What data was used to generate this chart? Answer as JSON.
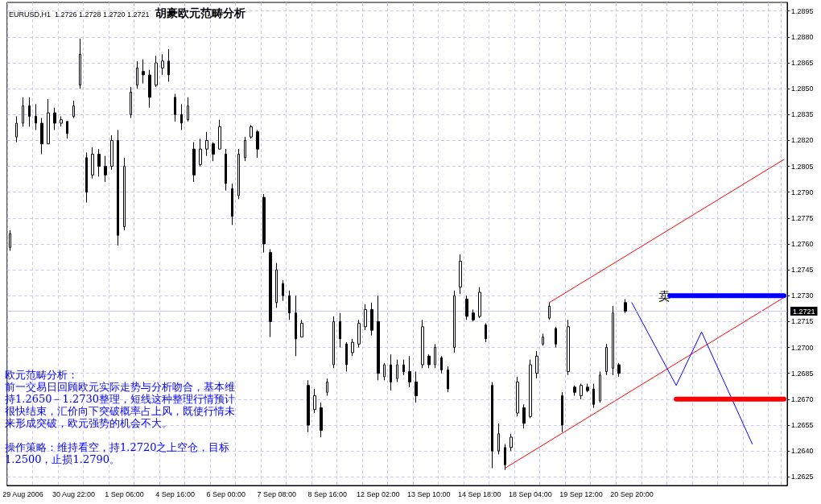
{
  "chart_data": {
    "type": "candlestick",
    "title": "胡豪欧元范畴分析",
    "subtitle": "EURUSD,H1  1.2726 1.2728 1.2720 1.2721",
    "categories": [
      null,
      null,
      "29 Aug 2006",
      null,
      null,
      null,
      null,
      null,
      null,
      null,
      "30 Aug 22:00",
      null,
      null,
      null,
      null,
      null,
      null,
      null,
      "1 Sep 06:00",
      null,
      null,
      null,
      null,
      null,
      null,
      null,
      "4 Sep 16:00",
      null,
      null,
      null,
      null,
      null,
      null,
      null,
      "6 Sep 00:00",
      null,
      null,
      null,
      null,
      null,
      null,
      null,
      "7 Sep 08:00",
      null,
      null,
      null,
      null,
      null,
      null,
      null,
      "8 Sep 16:00",
      null,
      null,
      null,
      null,
      null,
      null,
      null,
      "12 Sep 02:00",
      null,
      null,
      null,
      null,
      null,
      null,
      null,
      "13 Sep 10:00",
      null,
      null,
      null,
      null,
      null,
      null,
      null,
      "14 Sep 18:00",
      null,
      null,
      null,
      null,
      null,
      null,
      null,
      "18 Sep 04:00",
      null,
      null,
      null,
      null,
      null,
      null,
      null,
      "19 Sep 12:00",
      null,
      null,
      null,
      null,
      null,
      null,
      null,
      "20 Sep 20:00",
      null,
      null,
      null,
      null,
      null,
      null,
      null,
      null,
      null,
      null,
      null,
      null,
      null,
      null,
      null,
      null,
      null,
      null,
      null,
      null,
      null,
      null,
      null,
      null
    ],
    "color": "#000000",
    "ohlc": [
      [
        1.2758,
        1.2768,
        1.2756,
        1.2766
      ],
      [
        1.2822,
        1.2834,
        1.2819,
        1.283
      ],
      [
        1.283,
        1.2845,
        1.2828,
        1.284
      ],
      [
        1.284,
        1.2845,
        1.2828,
        1.2834
      ],
      [
        1.2834,
        1.2841,
        1.2826,
        1.283
      ],
      [
        1.283,
        1.2833,
        1.2812,
        1.2818
      ],
      [
        1.2818,
        1.2844,
        1.2818,
        1.2836
      ],
      [
        1.2836,
        1.2839,
        1.2826,
        1.283
      ],
      [
        1.283,
        1.2834,
        1.2828,
        1.2832
      ],
      [
        1.2831,
        1.2831,
        1.2821,
        1.2824
      ],
      [
        1.2834,
        1.2843,
        1.2833,
        1.284
      ],
      [
        1.2852,
        1.2879,
        1.285,
        1.287
      ],
      [
        1.281,
        1.2813,
        1.2784,
        1.279
      ],
      [
        1.28,
        1.2816,
        1.2798,
        1.2812
      ],
      [
        1.2812,
        1.2815,
        1.2799,
        1.2805
      ],
      [
        1.2805,
        1.2811,
        1.2796,
        1.28
      ],
      [
        1.2805,
        1.2823,
        1.2803,
        1.282
      ],
      [
        1.282,
        1.2826,
        1.2759,
        1.2765
      ],
      [
        1.277,
        1.281,
        1.2768,
        1.2805
      ],
      [
        1.2835,
        1.2851,
        1.2833,
        1.2848
      ],
      [
        1.2852,
        1.2866,
        1.285,
        1.2862
      ],
      [
        1.286,
        1.2867,
        1.2853,
        1.2858
      ],
      [
        1.2858,
        1.2861,
        1.2839,
        1.2845
      ],
      [
        1.2852,
        1.2869,
        1.2851,
        1.2865
      ],
      [
        1.2862,
        1.287,
        1.2858,
        1.2866
      ],
      [
        1.2866,
        1.2873,
        1.2854,
        1.2858
      ],
      [
        1.2845,
        1.2847,
        1.2831,
        1.2835
      ],
      [
        1.2835,
        1.2841,
        1.2826,
        1.283
      ],
      [
        1.2832,
        1.2845,
        1.2831,
        1.284
      ],
      [
        1.2815,
        1.2819,
        1.2796,
        1.28
      ],
      [
        1.2806,
        1.2821,
        1.2805,
        1.2815
      ],
      [
        1.2815,
        1.2825,
        1.2811,
        1.282
      ],
      [
        1.2818,
        1.2819,
        1.2808,
        1.2812
      ],
      [
        1.2815,
        1.2832,
        1.2815,
        1.2828
      ],
      [
        1.2812,
        1.2815,
        1.2791,
        1.2795
      ],
      [
        1.2792,
        1.2795,
        1.2771,
        1.2776
      ],
      [
        1.2788,
        1.2815,
        1.2786,
        1.2812
      ],
      [
        1.281,
        1.2822,
        1.2808,
        1.282
      ],
      [
        1.2822,
        1.2829,
        1.2821,
        1.2828
      ],
      [
        1.2825,
        1.2826,
        1.281,
        1.2815
      ],
      [
        1.2787,
        1.2789,
        1.2755,
        1.276
      ],
      [
        1.2755,
        1.2757,
        1.2706,
        1.2715
      ],
      [
        1.2726,
        1.2749,
        1.2723,
        1.2745
      ],
      [
        1.2737,
        1.2739,
        1.2727,
        1.273
      ],
      [
        1.273,
        1.2733,
        1.2716,
        1.272
      ],
      [
        1.272,
        1.273,
        1.2695,
        1.2705
      ],
      [
        1.2706,
        1.2716,
        1.2706,
        1.2714
      ],
      [
        1.2678,
        1.2681,
        1.2651,
        1.2655
      ],
      [
        1.2664,
        1.2676,
        1.2662,
        1.2672
      ],
      [
        1.2665,
        1.2668,
        1.2648,
        1.2652
      ],
      [
        1.2674,
        1.2682,
        1.2672,
        1.268
      ],
      [
        1.269,
        1.2718,
        1.2688,
        1.2715
      ],
      [
        1.2715,
        1.272,
        1.27,
        1.2705
      ],
      [
        1.2702,
        1.2703,
        1.2686,
        1.269
      ],
      [
        1.2697,
        1.2705,
        1.2695,
        1.2703
      ],
      [
        1.2702,
        1.2716,
        1.27,
        1.2714
      ],
      [
        1.2712,
        1.2725,
        1.271,
        1.2722
      ],
      [
        1.2722,
        1.2726,
        1.2707,
        1.271
      ],
      [
        1.2715,
        1.273,
        1.2681,
        1.2685
      ],
      [
        1.2683,
        1.2691,
        1.2681,
        1.269
      ],
      [
        1.269,
        1.2696,
        1.2675,
        1.268
      ],
      [
        1.2682,
        1.2693,
        1.268,
        1.269
      ],
      [
        1.269,
        1.2693,
        1.2684,
        1.2686
      ],
      [
        1.2686,
        1.2695,
        1.2677,
        1.268
      ],
      [
        1.268,
        1.2686,
        1.2668,
        1.2672
      ],
      [
        1.269,
        1.2716,
        1.2688,
        1.2712
      ],
      [
        1.2695,
        1.2696,
        1.2688,
        1.269
      ],
      [
        1.269,
        1.2702,
        1.2688,
        1.27
      ],
      [
        1.2694,
        1.2695,
        1.2685,
        1.2687
      ],
      [
        1.2687,
        1.2689,
        1.2674,
        1.2676
      ],
      [
        1.27,
        1.2733,
        1.2697,
        1.273
      ],
      [
        1.2735,
        1.2754,
        1.2731,
        1.275
      ],
      [
        1.2728,
        1.273,
        1.2716,
        1.2718
      ],
      [
        1.272,
        1.2722,
        1.2715,
        1.2716
      ],
      [
        1.2718,
        1.2735,
        1.2717,
        1.2732
      ],
      [
        1.2713,
        1.2714,
        1.2703,
        1.2705
      ],
      [
        1.2678,
        1.268,
        1.263,
        1.264
      ],
      [
        1.264,
        1.2656,
        1.2638,
        1.265
      ],
      [
        1.2642,
        1.2644,
        1.2629,
        1.2632
      ],
      [
        1.2642,
        1.265,
        1.264,
        1.2648
      ],
      [
        1.2662,
        1.2683,
        1.266,
        1.268
      ],
      [
        1.2665,
        1.2667,
        1.2653,
        1.2656
      ],
      [
        1.266,
        1.2693,
        1.2659,
        1.269
      ],
      [
        1.2685,
        1.2698,
        1.2682,
        1.2695
      ],
      [
        1.2702,
        1.2708,
        1.2701,
        1.2706
      ],
      [
        1.2717,
        1.2726,
        1.2716,
        1.2724
      ],
      [
        1.2711,
        1.2712,
        1.27,
        1.2702
      ],
      [
        1.2672,
        1.2674,
        1.2651,
        1.2655
      ],
      [
        1.2686,
        1.2716,
        1.2684,
        1.2712
      ],
      [
        1.2677,
        1.2678,
        1.2672,
        1.2674
      ],
      [
        1.2672,
        1.2679,
        1.267,
        1.2678
      ],
      [
        1.2677,
        1.2679,
        1.2674,
        1.2675
      ],
      [
        1.2676,
        1.2679,
        1.2665,
        1.2667
      ],
      [
        1.2669,
        1.2686,
        1.2668,
        1.2684
      ],
      [
        1.2686,
        1.2702,
        1.2684,
        1.27
      ],
      [
        1.2688,
        1.2724,
        1.2684,
        1.272
      ],
      [
        1.269,
        1.2691,
        1.2683,
        1.2685
      ],
      [
        1.2726,
        1.2728,
        1.272,
        1.2721
      ],
      null,
      null,
      null,
      null,
      null,
      null,
      null,
      null,
      null,
      null,
      null,
      null,
      null,
      null,
      null,
      null,
      null,
      null,
      null,
      null,
      null,
      null,
      null,
      null,
      null
    ],
    "series": [
      {
        "type": "line",
        "color": "#ff0000",
        "values": [
          null,
          null,
          null,
          null,
          null,
          null,
          null,
          null,
          null,
          null,
          null,
          null,
          null,
          null,
          null,
          null,
          null,
          null,
          null,
          null,
          null,
          null,
          null,
          null,
          null,
          null,
          null,
          null,
          null,
          null,
          null,
          null,
          null,
          null,
          null,
          null,
          null,
          null,
          null,
          null,
          null,
          null,
          null,
          null,
          null,
          null,
          null,
          null,
          null,
          null,
          null,
          null,
          null,
          null,
          null,
          null,
          null,
          null,
          null,
          null,
          null,
          null,
          null,
          null,
          null,
          null,
          null,
          null,
          null,
          null,
          null,
          null,
          null,
          null,
          null,
          null,
          null,
          null,
          1.263,
          null,
          null,
          null,
          null,
          null,
          null,
          null,
          null,
          null,
          null,
          null,
          null,
          null,
          null,
          null,
          null,
          null,
          null,
          null,
          null,
          null,
          null,
          null,
          null,
          null,
          null,
          null,
          null,
          null,
          null,
          null,
          null,
          null,
          null,
          null,
          null,
          null,
          null,
          null,
          null,
          null,
          null,
          null,
          1.2729
        ]
      },
      {
        "type": "line",
        "color": "#ff0000",
        "values": [
          null,
          null,
          null,
          null,
          null,
          null,
          null,
          null,
          null,
          null,
          null,
          null,
          null,
          null,
          null,
          null,
          null,
          null,
          null,
          null,
          null,
          null,
          null,
          null,
          null,
          null,
          null,
          null,
          null,
          null,
          null,
          null,
          null,
          null,
          null,
          null,
          null,
          null,
          null,
          null,
          null,
          null,
          null,
          null,
          null,
          null,
          null,
          null,
          null,
          null,
          null,
          null,
          null,
          null,
          null,
          null,
          null,
          null,
          null,
          null,
          null,
          null,
          null,
          null,
          null,
          null,
          null,
          null,
          null,
          null,
          null,
          null,
          null,
          null,
          null,
          null,
          null,
          null,
          null,
          null,
          null,
          null,
          null,
          null,
          null,
          1.2726,
          null,
          null,
          null,
          null,
          null,
          null,
          null,
          null,
          null,
          null,
          null,
          null,
          null,
          null,
          null,
          null,
          null,
          null,
          null,
          null,
          null,
          null,
          null,
          null,
          null,
          null,
          null,
          null,
          null,
          null,
          null,
          null,
          null,
          null,
          null,
          null,
          1.2809
        ]
      },
      {
        "type": "line",
        "color": "#0000ff",
        "values": [
          null,
          null,
          null,
          null,
          null,
          null,
          null,
          null,
          null,
          null,
          null,
          null,
          null,
          null,
          null,
          null,
          null,
          null,
          null,
          null,
          null,
          null,
          null,
          null,
          null,
          null,
          null,
          null,
          null,
          null,
          null,
          null,
          null,
          null,
          null,
          null,
          null,
          null,
          null,
          null,
          null,
          null,
          null,
          null,
          null,
          null,
          null,
          null,
          null,
          null,
          null,
          null,
          null,
          null,
          null,
          null,
          null,
          null,
          null,
          null,
          null,
          null,
          null,
          null,
          null,
          null,
          null,
          null,
          null,
          null,
          null,
          null,
          null,
          null,
          null,
          null,
          null,
          null,
          null,
          null,
          null,
          null,
          null,
          null,
          null,
          null,
          null,
          null,
          null,
          null,
          null,
          null,
          null,
          null,
          null,
          null,
          null,
          null,
          1.2726,
          null,
          null,
          null,
          null,
          null,
          null,
          1.2678,
          null,
          null,
          null,
          1.2709,
          null,
          null,
          null,
          null,
          null,
          null,
          null,
          1.2644,
          null,
          null,
          null,
          null,
          null
        ]
      },
      {
        "type": "line",
        "color": "#0000ff",
        "values": [
          null,
          null,
          null,
          null,
          null,
          null,
          null,
          null,
          null,
          null,
          null,
          null,
          null,
          null,
          null,
          null,
          null,
          null,
          null,
          null,
          null,
          null,
          null,
          null,
          null,
          null,
          null,
          null,
          null,
          null,
          null,
          null,
          null,
          null,
          null,
          null,
          null,
          null,
          null,
          null,
          null,
          null,
          null,
          null,
          null,
          null,
          null,
          null,
          null,
          null,
          null,
          null,
          null,
          null,
          null,
          null,
          null,
          null,
          null,
          null,
          null,
          null,
          null,
          null,
          null,
          null,
          null,
          null,
          null,
          null,
          null,
          null,
          null,
          null,
          null,
          null,
          null,
          null,
          null,
          null,
          null,
          null,
          null,
          null,
          null,
          null,
          null,
          null,
          null,
          null,
          null,
          null,
          null,
          null,
          null,
          null,
          null,
          null,
          null,
          null,
          null,
          null,
          null,
          null,
          1.273,
          null,
          null,
          null,
          null,
          null,
          null,
          null,
          null,
          null,
          null,
          null,
          null,
          null,
          null,
          null,
          null,
          null,
          1.273
        ]
      },
      {
        "type": "line",
        "color": "#ff0000",
        "values": [
          null,
          null,
          null,
          null,
          null,
          null,
          null,
          null,
          null,
          null,
          null,
          null,
          null,
          null,
          null,
          null,
          null,
          null,
          null,
          null,
          null,
          null,
          null,
          null,
          null,
          null,
          null,
          null,
          null,
          null,
          null,
          null,
          null,
          null,
          null,
          null,
          null,
          null,
          null,
          null,
          null,
          null,
          null,
          null,
          null,
          null,
          null,
          null,
          null,
          null,
          null,
          null,
          null,
          null,
          null,
          null,
          null,
          null,
          null,
          null,
          null,
          null,
          null,
          null,
          null,
          null,
          null,
          null,
          null,
          null,
          null,
          null,
          null,
          null,
          null,
          null,
          null,
          null,
          null,
          null,
          null,
          null,
          null,
          null,
          null,
          null,
          null,
          null,
          null,
          null,
          null,
          null,
          null,
          null,
          null,
          null,
          null,
          null,
          null,
          null,
          null,
          null,
          null,
          null,
          null,
          1.267,
          null,
          null,
          null,
          null,
          null,
          null,
          null,
          null,
          null,
          null,
          null,
          null,
          null,
          null,
          null,
          null,
          1.267
        ]
      }
    ],
    "ref_lines": [
      {
        "axis": "y",
        "value": 1.2721,
        "label": "1.2721",
        "color": "#c8c8ff"
      }
    ],
    "annotations": [
      "欧元范畴分析：",
      "前一交易日回顾欧元实际走势与分析吻合，基本维持1.2650－1.2730整理，短线这种整理行情预计很快结束，汇价向下突破概率占上风，既使行情未来形成突破，欧元强势的机会不大。",
      "操作策略：维持看空，持1.2720之上空仓，目标1.2500，止损1.2790。",
      "卖"
    ],
    "ylim": [
      1.262,
      1.29
    ],
    "yticks": [
      1.2625,
      {
        "value": 1.264,
        "label": "1.2640"
      },
      1.2655,
      {
        "value": 1.267,
        "label": "1.2670"
      },
      1.2685,
      {
        "value": 1.27,
        "label": "1.2700"
      },
      1.2715,
      {
        "value": 1.273,
        "label": "1.2730"
      },
      1.2745,
      {
        "value": 1.276,
        "label": "1.2760"
      },
      1.2775,
      {
        "value": 1.279,
        "label": "1.2790"
      },
      1.2805,
      {
        "value": 1.282,
        "label": "1.2820"
      },
      1.2835,
      {
        "value": 1.285,
        "label": "1.2850"
      },
      1.2865,
      {
        "value": 1.288,
        "label": "1.2880"
      },
      1.2895
    ],
    "grid": true
  }
}
